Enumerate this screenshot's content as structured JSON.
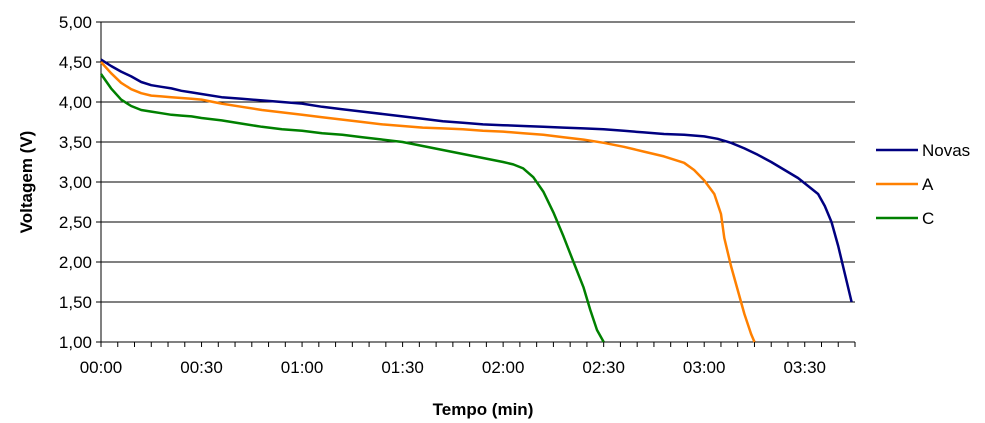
{
  "chart_data": {
    "type": "line",
    "title": "",
    "xlabel": "Tempo (min)",
    "ylabel": "Voltagem (V)",
    "ylim": [
      1.0,
      5.0
    ],
    "xlim": [
      "00:00",
      "03:45"
    ],
    "x_ticks": [
      "00:00",
      "00:30",
      "01:00",
      "01:30",
      "02:00",
      "02:30",
      "03:00",
      "03:30"
    ],
    "y_ticks": [
      "5,00",
      "4,50",
      "4,00",
      "3,50",
      "3,00",
      "2,50",
      "2,00",
      "1,50",
      "1,00"
    ],
    "grid": "horizontal",
    "legend": "right",
    "series": [
      {
        "name": "Novas",
        "color": "#000080",
        "x": [
          "00:00",
          "00:03",
          "00:06",
          "00:09",
          "00:12",
          "00:15",
          "00:18",
          "00:21",
          "00:24",
          "00:27",
          "00:30",
          "00:36",
          "00:42",
          "00:48",
          "00:54",
          "01:00",
          "01:06",
          "01:12",
          "01:18",
          "01:24",
          "01:30",
          "01:36",
          "01:42",
          "01:48",
          "01:54",
          "02:00",
          "02:06",
          "02:12",
          "02:18",
          "02:24",
          "02:30",
          "02:36",
          "02:42",
          "02:48",
          "02:54",
          "03:00",
          "03:04",
          "03:08",
          "03:12",
          "03:16",
          "03:20",
          "03:24",
          "03:28",
          "03:31",
          "03:34",
          "03:36",
          "03:38",
          "03:40",
          "03:42",
          "03:44"
        ],
        "y": [
          4.53,
          4.45,
          4.38,
          4.32,
          4.25,
          4.21,
          4.19,
          4.17,
          4.14,
          4.12,
          4.1,
          4.06,
          4.04,
          4.02,
          4.0,
          3.98,
          3.94,
          3.91,
          3.88,
          3.85,
          3.82,
          3.79,
          3.76,
          3.74,
          3.72,
          3.71,
          3.7,
          3.69,
          3.68,
          3.67,
          3.66,
          3.64,
          3.62,
          3.6,
          3.59,
          3.57,
          3.54,
          3.49,
          3.42,
          3.34,
          3.25,
          3.15,
          3.05,
          2.95,
          2.85,
          2.7,
          2.5,
          2.2,
          1.85,
          1.5
        ]
      },
      {
        "name": "A",
        "color": "#ff8000",
        "x": [
          "00:00",
          "00:03",
          "00:06",
          "00:09",
          "00:12",
          "00:15",
          "00:18",
          "00:21",
          "00:24",
          "00:27",
          "00:30",
          "00:36",
          "00:42",
          "00:48",
          "00:54",
          "01:00",
          "01:06",
          "01:12",
          "01:18",
          "01:24",
          "01:30",
          "01:36",
          "01:42",
          "01:48",
          "01:54",
          "02:00",
          "02:06",
          "02:12",
          "02:18",
          "02:24",
          "02:30",
          "02:36",
          "02:42",
          "02:48",
          "02:54",
          "02:57",
          "03:00",
          "03:03",
          "03:05",
          "03:06",
          "03:08",
          "03:10",
          "03:12",
          "03:14",
          "03:15"
        ],
        "y": [
          4.5,
          4.36,
          4.24,
          4.16,
          4.11,
          4.08,
          4.07,
          4.06,
          4.05,
          4.04,
          4.03,
          3.98,
          3.94,
          3.9,
          3.87,
          3.84,
          3.81,
          3.78,
          3.75,
          3.72,
          3.7,
          3.68,
          3.67,
          3.66,
          3.64,
          3.63,
          3.61,
          3.59,
          3.56,
          3.53,
          3.49,
          3.44,
          3.38,
          3.32,
          3.24,
          3.15,
          3.02,
          2.85,
          2.6,
          2.3,
          1.95,
          1.65,
          1.35,
          1.1,
          1.0
        ]
      },
      {
        "name": "C",
        "color": "#008000",
        "x": [
          "00:00",
          "00:03",
          "00:06",
          "00:09",
          "00:12",
          "00:15",
          "00:18",
          "00:21",
          "00:24",
          "00:27",
          "00:30",
          "00:36",
          "00:42",
          "00:48",
          "00:54",
          "01:00",
          "01:06",
          "01:12",
          "01:18",
          "01:24",
          "01:30",
          "01:36",
          "01:42",
          "01:48",
          "01:54",
          "02:00",
          "02:03",
          "02:06",
          "02:09",
          "02:12",
          "02:15",
          "02:18",
          "02:21",
          "02:24",
          "02:26",
          "02:28",
          "02:30"
        ],
        "y": [
          4.35,
          4.17,
          4.03,
          3.95,
          3.9,
          3.88,
          3.86,
          3.84,
          3.83,
          3.82,
          3.8,
          3.77,
          3.73,
          3.69,
          3.66,
          3.64,
          3.61,
          3.59,
          3.56,
          3.53,
          3.5,
          3.45,
          3.4,
          3.35,
          3.3,
          3.25,
          3.22,
          3.17,
          3.06,
          2.88,
          2.62,
          2.32,
          2.0,
          1.68,
          1.4,
          1.15,
          1.0
        ]
      }
    ]
  }
}
